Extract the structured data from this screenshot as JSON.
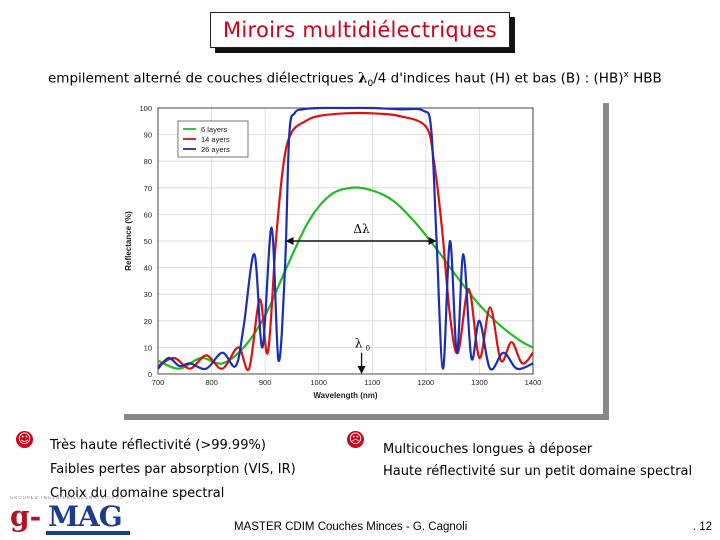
{
  "slide": {
    "title": "Miroirs multidiélectriques",
    "subtitle_pre": "empilement alterné de couches diélectriques ",
    "subtitle_sym": "λ",
    "subtitle_sub": "0",
    "subtitle_post": "/4 d'indices haut (H) et bas (B) : (HB)",
    "subtitle_sup": "x",
    "subtitle_end": " HBB",
    "pros_bullet": "☺",
    "pros": [
      "Très haute réflectivité (>99.99%)",
      "Faibles pertes par absorption (VIS, IR)",
      "Choix du domaine spectral"
    ],
    "cons_bullet": "☹",
    "cons": [
      "Multicouches longues à déposer",
      "Haute réflectivité sur un petit domaine spectral"
    ],
    "footer": "MASTER CDIM Couches Minces - G. Cagnoli",
    "page_number": ". 12",
    "logo_text": "g-MAG",
    "logo_strip": "G R O U P E   D ' I N G E N I E R I E   D E S   M A T E R I A U X"
  },
  "chart_data": {
    "type": "line",
    "xlabel": "Wavelength (nm)",
    "ylabel": "Reflectance (%)",
    "xlim": [
      700,
      1400
    ],
    "ylim": [
      0,
      100
    ],
    "xticks": [
      700,
      800,
      900,
      1000,
      1100,
      1200,
      1300,
      1400
    ],
    "yticks": [
      0,
      10,
      20,
      30,
      40,
      50,
      60,
      70,
      80,
      90,
      100
    ],
    "grid": true,
    "legend_position": "top-left",
    "annotation_bandwidth": "Δλ",
    "annotation_center": "λ",
    "annotation_center_sub": "0",
    "series": [
      {
        "name": "6 layers",
        "color": "#22bb22",
        "x": [
          700,
          740,
          780,
          820,
          860,
          900,
          940,
          980,
          1020,
          1060,
          1100,
          1140,
          1180,
          1220,
          1260,
          1300,
          1340,
          1380,
          1400
        ],
        "y": [
          5,
          2,
          6,
          4,
          10,
          22,
          40,
          57,
          67,
          70,
          69,
          65,
          57,
          47,
          36,
          26,
          18,
          12,
          10
        ]
      },
      {
        "name": "14 ayers",
        "color": "#dd1111",
        "x": [
          700,
          730,
          760,
          790,
          820,
          850,
          870,
          890,
          905,
          920,
          935,
          950,
          975,
          1000,
          1050,
          1100,
          1150,
          1200,
          1215,
          1230,
          1245,
          1260,
          1280,
          1300,
          1320,
          1340,
          1360,
          1380,
          1400
        ],
        "y": [
          3,
          6,
          2,
          7,
          2,
          10,
          2,
          28,
          8,
          50,
          80,
          91,
          95,
          97,
          98,
          98,
          97,
          93,
          80,
          55,
          22,
          8,
          32,
          6,
          25,
          5,
          12,
          4,
          8
        ]
      },
      {
        "name": "26 ayers",
        "color": "#1a2fb0",
        "x": [
          700,
          720,
          740,
          760,
          790,
          820,
          845,
          860,
          880,
          895,
          912,
          925,
          937,
          945,
          955,
          970,
          1000,
          1050,
          1100,
          1150,
          1195,
          1210,
          1220,
          1232,
          1245,
          1258,
          1270,
          1285,
          1300,
          1320,
          1345,
          1370,
          1400
        ],
        "y": [
          2,
          6,
          3,
          4,
          2,
          8,
          3,
          18,
          45,
          10,
          55,
          5,
          40,
          90,
          98,
          99.5,
          100,
          100,
          100,
          99.5,
          99,
          92,
          50,
          2,
          50,
          8,
          45,
          6,
          20,
          2,
          8,
          2,
          4
        ]
      }
    ]
  }
}
